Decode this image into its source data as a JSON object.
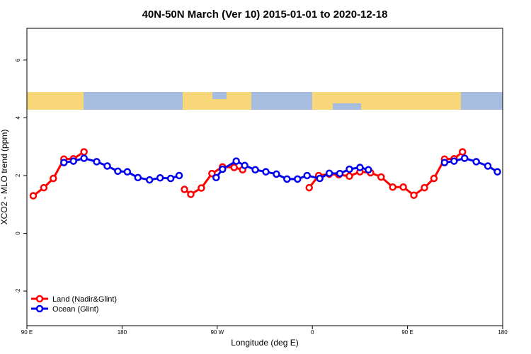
{
  "chart_data": {
    "type": "line",
    "title": "40N-50N March (Ver 10)   2015-01-01 to 2020-12-18",
    "xlabel": "Longitude (deg E)",
    "ylabel": "XCO2 - MLO trend (ppm)",
    "xlim": [
      90,
      540
    ],
    "ylim": [
      -3.2,
      7.1
    ],
    "xticks": [
      {
        "value": 90,
        "label": "90 E"
      },
      180,
      {
        "value": 270,
        "label": "90 W"
      },
      {
        "value": 360,
        "label": "0"
      },
      {
        "value": 450,
        "label": "90 E"
      },
      {
        "value": 540,
        "label": "180"
      }
    ],
    "yticks": [
      -2,
      0,
      2,
      4,
      6
    ],
    "legend": "bottom-left",
    "series": [
      {
        "name": "Land (Nadir&Glint)",
        "color": "#ff0000",
        "x": [
          96,
          106,
          115,
          125,
          134,
          144,
          null,
          239,
          245,
          255,
          265,
          275,
          286,
          294,
          null,
          357,
          366,
          376,
          385,
          395,
          405,
          415,
          425,
          436,
          446,
          456,
          466,
          475,
          485,
          494,
          502
        ],
        "values": [
          1.3,
          1.58,
          1.9,
          2.57,
          2.58,
          2.82,
          null,
          1.52,
          1.35,
          1.57,
          2.07,
          2.3,
          2.28,
          2.2,
          null,
          1.58,
          2.0,
          2.05,
          2.03,
          1.98,
          2.13,
          2.1,
          1.95,
          1.6,
          1.6,
          1.32,
          1.58,
          1.9,
          2.57,
          2.58,
          2.82
        ]
      },
      {
        "name": "Ocean (Glint)",
        "color": "#0000ee",
        "x": [
          125,
          134,
          144,
          156,
          166,
          176,
          185,
          195,
          206,
          216,
          226,
          234,
          null,
          269,
          275,
          288,
          296,
          306,
          316,
          326,
          336,
          346,
          355,
          367,
          376,
          386,
          395,
          405,
          413,
          null,
          485,
          494,
          504,
          515,
          526,
          535
        ],
        "values": [
          2.45,
          2.5,
          2.6,
          2.48,
          2.33,
          2.15,
          2.13,
          1.93,
          1.85,
          1.92,
          1.9,
          2.0,
          null,
          1.93,
          2.22,
          2.5,
          2.35,
          2.2,
          2.13,
          2.05,
          1.88,
          1.88,
          2.0,
          1.9,
          2.08,
          2.07,
          2.22,
          2.28,
          2.2,
          null,
          2.45,
          2.5,
          2.6,
          2.48,
          2.33,
          2.13
        ]
      }
    ]
  }
}
